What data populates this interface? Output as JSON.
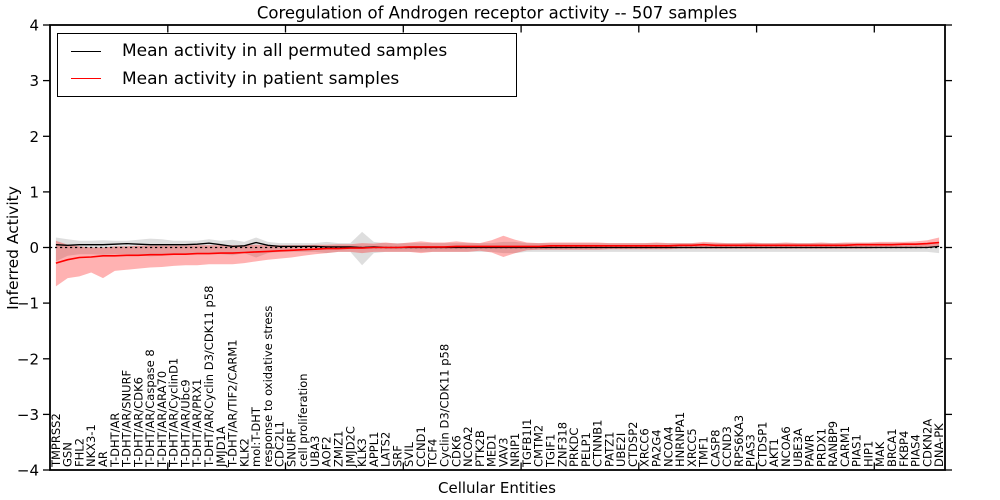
{
  "title": "Coregulation of Androgen receptor activity -- 507 samples",
  "axes": {
    "ylabel": "Inferred Activity",
    "xlabel": "Cellular Entities",
    "ylim": [
      -4,
      4
    ],
    "ytick_labels": [
      "4",
      "3",
      "2",
      "1",
      "0",
      "−1",
      "−2",
      "−3",
      "−4"
    ],
    "ytick_values": [
      4,
      3,
      2,
      1,
      0,
      -1,
      -2,
      -3,
      -4
    ]
  },
  "legend": {
    "position": "upper left",
    "entries": [
      {
        "label": "Mean activity in all permuted samples",
        "color": "#000000"
      },
      {
        "label": "Mean activity in patient samples",
        "color": "#ff0000"
      }
    ]
  },
  "colors": {
    "permuted_line": "#000000",
    "permuted_band": "rgba(0,0,0,0.13)",
    "patient_line": "#ff0000",
    "patient_band": "rgba(255,0,0,0.30)",
    "zero_line": "#000000",
    "frame": "#000000"
  },
  "chart_data": {
    "type": "line",
    "title": "Coregulation of Androgen receptor activity -- 507 samples",
    "xlabel": "Cellular Entities",
    "ylabel": "Inferred Activity",
    "ylim": [
      -4,
      4
    ],
    "grid": false,
    "zero_reference_line": true,
    "legend_position": "upper left",
    "categories": [
      "TMPRSS2",
      "GSN",
      "FHL2",
      "NKX3-1",
      "AR",
      "T-DHT/AR",
      "T-DHT/AR/SNURF",
      "T-DHT/AR/CDK6",
      "T-DHT/AR/Caspase 8",
      "T-DHT/AR/ARA70",
      "T-DHT/AR/CyclinD1",
      "T-DHT/AR/Ubc9",
      "T-DHT/AR/PRX1",
      "T-DHT/AR/Cyclin D3/CDK11 p58",
      "JMJD1A",
      "T-DHT/AR/TIF2/CARM1",
      "KLK2",
      "mol:T-DHT",
      "response to oxidative stress",
      "CDC2L1",
      "SNURF",
      "cell proliferation",
      "UBA3",
      "AOF2",
      "ZMIZ1",
      "JMJD2C",
      "KLK3",
      "APPL1",
      "LATS2",
      "SRF",
      "SVIL",
      "CCND1",
      "TCF4",
      "Cyclin D3/CDK11 p58",
      "CDK6",
      "NCOA2",
      "PTK2B",
      "MED1",
      "VAV3",
      "NRIP1",
      "TGFB1I1",
      "CMTM2",
      "TGIF1",
      "ZNF318",
      "PRKDC",
      "PELP1",
      "CTNNB1",
      "PATZ1",
      "UBE2I",
      "CTDSP2",
      "XRCC6",
      "PA2G4",
      "NCOA4",
      "HNRNPA1",
      "XRCC5",
      "TMF1",
      "CASP8",
      "CCND3",
      "RPS6KA3",
      "PIAS3",
      "CTDSP1",
      "AKT1",
      "NCOA6",
      "UBE3A",
      "PAWR",
      "PRDX1",
      "RANBP9",
      "CARM1",
      "PIAS1",
      "HIP1",
      "MAK",
      "BRCA1",
      "FKBP4",
      "PIAS4",
      "CDKN2A",
      "DNA-PK"
    ],
    "series": [
      {
        "name": "Mean activity in all permuted samples",
        "color": "#000000",
        "values": [
          0.05,
          0.04,
          0.05,
          0.05,
          0.05,
          0.06,
          0.07,
          0.06,
          0.05,
          0.05,
          0.05,
          0.05,
          0.06,
          0.08,
          0.05,
          0.02,
          0.03,
          0.09,
          0.04,
          0.02,
          0.02,
          0.02,
          0.02,
          0.01,
          0.01,
          0.01,
          0.0,
          0.01,
          0.0,
          0.0,
          0.0,
          0.0,
          0.0,
          0.0,
          0.0,
          0.0,
          0.0,
          0.0,
          0.0,
          0.0,
          0.0,
          0.0,
          0.0,
          0.0,
          0.0,
          0.0,
          0.0,
          0.0,
          0.0,
          0.0,
          0.0,
          0.0,
          0.0,
          0.0,
          0.0,
          0.0,
          0.0,
          0.0,
          0.0,
          0.0,
          0.0,
          0.0,
          0.0,
          0.0,
          0.0,
          0.0,
          0.0,
          0.0,
          0.0,
          0.0,
          0.0,
          0.0,
          0.0,
          0.0,
          0.0,
          0.02
        ],
        "band_upper": [
          0.18,
          0.15,
          0.12,
          0.12,
          0.13,
          0.12,
          0.12,
          0.14,
          0.16,
          0.15,
          0.12,
          0.12,
          0.12,
          0.15,
          0.12,
          0.14,
          0.1,
          0.18,
          0.1,
          0.08,
          0.08,
          0.08,
          0.08,
          0.1,
          0.08,
          0.08,
          0.28,
          0.1,
          0.08,
          0.08,
          0.08,
          0.08,
          0.08,
          0.08,
          0.08,
          0.08,
          0.08,
          0.08,
          0.1,
          0.1,
          0.08,
          0.08,
          0.08,
          0.08,
          0.08,
          0.08,
          0.08,
          0.08,
          0.08,
          0.08,
          0.08,
          0.08,
          0.08,
          0.08,
          0.08,
          0.08,
          0.08,
          0.08,
          0.08,
          0.08,
          0.08,
          0.08,
          0.08,
          0.08,
          0.08,
          0.08,
          0.08,
          0.08,
          0.08,
          0.08,
          0.08,
          0.08,
          0.08,
          0.08,
          0.08,
          0.1
        ],
        "band_lower": [
          -0.25,
          -0.15,
          -0.12,
          -0.12,
          -0.13,
          -0.12,
          -0.12,
          -0.14,
          -0.16,
          -0.15,
          -0.12,
          -0.12,
          -0.12,
          -0.12,
          -0.12,
          -0.14,
          -0.1,
          -0.18,
          -0.1,
          -0.08,
          -0.08,
          -0.08,
          -0.08,
          -0.1,
          -0.08,
          -0.08,
          -0.32,
          -0.1,
          -0.08,
          -0.08,
          -0.08,
          -0.08,
          -0.08,
          -0.08,
          -0.08,
          -0.08,
          -0.08,
          -0.08,
          -0.1,
          -0.1,
          -0.08,
          -0.08,
          -0.08,
          -0.08,
          -0.08,
          -0.08,
          -0.08,
          -0.08,
          -0.08,
          -0.08,
          -0.08,
          -0.08,
          -0.08,
          -0.08,
          -0.08,
          -0.08,
          -0.08,
          -0.08,
          -0.08,
          -0.08,
          -0.08,
          -0.08,
          -0.08,
          -0.08,
          -0.08,
          -0.08,
          -0.08,
          -0.08,
          -0.08,
          -0.08,
          -0.08,
          -0.08,
          -0.08,
          -0.08,
          -0.08,
          -0.1
        ]
      },
      {
        "name": "Mean activity in patient samples",
        "color": "#ff0000",
        "values": [
          -0.28,
          -0.22,
          -0.18,
          -0.17,
          -0.15,
          -0.15,
          -0.14,
          -0.14,
          -0.13,
          -0.13,
          -0.12,
          -0.12,
          -0.11,
          -0.11,
          -0.1,
          -0.1,
          -0.09,
          -0.08,
          -0.07,
          -0.06,
          -0.05,
          -0.04,
          -0.03,
          -0.02,
          -0.02,
          -0.01,
          -0.01,
          0.0,
          0.0,
          0.0,
          0.01,
          0.01,
          0.01,
          0.01,
          0.02,
          0.02,
          0.02,
          0.02,
          0.02,
          0.02,
          0.02,
          0.02,
          0.03,
          0.03,
          0.03,
          0.03,
          0.03,
          0.03,
          0.03,
          0.03,
          0.03,
          0.03,
          0.03,
          0.04,
          0.04,
          0.05,
          0.04,
          0.04,
          0.04,
          0.04,
          0.04,
          0.04,
          0.04,
          0.04,
          0.04,
          0.04,
          0.04,
          0.04,
          0.05,
          0.05,
          0.05,
          0.05,
          0.06,
          0.06,
          0.07,
          0.09
        ],
        "band_upper": [
          0.12,
          0.05,
          0.02,
          0.0,
          0.0,
          0.02,
          0.02,
          0.03,
          0.03,
          0.03,
          0.03,
          0.03,
          0.04,
          0.04,
          0.04,
          0.04,
          0.04,
          0.05,
          0.04,
          0.04,
          0.04,
          0.04,
          0.05,
          0.05,
          0.06,
          0.06,
          0.08,
          0.07,
          0.09,
          0.07,
          0.09,
          0.11,
          0.09,
          0.09,
          0.11,
          0.09,
          0.08,
          0.13,
          0.21,
          0.14,
          0.09,
          0.08,
          0.09,
          0.09,
          0.09,
          0.09,
          0.09,
          0.08,
          0.08,
          0.08,
          0.08,
          0.09,
          0.08,
          0.08,
          0.08,
          0.1,
          0.09,
          0.08,
          0.08,
          0.09,
          0.08,
          0.08,
          0.09,
          0.08,
          0.08,
          0.09,
          0.08,
          0.09,
          0.09,
          0.09,
          0.1,
          0.1,
          0.1,
          0.11,
          0.13,
          0.18
        ],
        "band_lower": [
          -0.7,
          -0.55,
          -0.52,
          -0.45,
          -0.55,
          -0.42,
          -0.4,
          -0.38,
          -0.36,
          -0.35,
          -0.33,
          -0.32,
          -0.32,
          -0.3,
          -0.3,
          -0.3,
          -0.28,
          -0.25,
          -0.22,
          -0.2,
          -0.18,
          -0.15,
          -0.12,
          -0.1,
          -0.08,
          -0.08,
          -0.1,
          -0.08,
          -0.08,
          -0.08,
          -0.08,
          -0.1,
          -0.08,
          -0.08,
          -0.08,
          -0.08,
          -0.06,
          -0.09,
          -0.17,
          -0.1,
          -0.05,
          -0.04,
          -0.04,
          -0.04,
          -0.04,
          -0.04,
          -0.04,
          -0.03,
          -0.03,
          -0.03,
          -0.03,
          -0.03,
          -0.03,
          -0.02,
          -0.02,
          -0.02,
          -0.02,
          -0.02,
          -0.02,
          -0.02,
          -0.02,
          -0.02,
          -0.02,
          -0.02,
          -0.02,
          -0.02,
          -0.02,
          -0.02,
          -0.02,
          -0.02,
          -0.01,
          -0.01,
          -0.01,
          -0.01,
          0.0,
          0.02
        ]
      }
    ]
  }
}
